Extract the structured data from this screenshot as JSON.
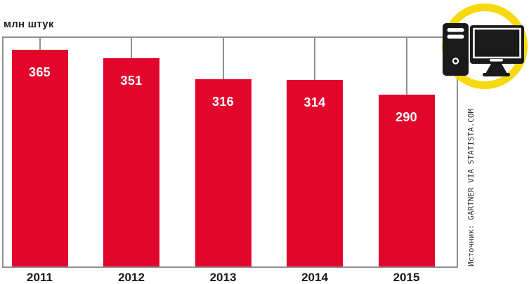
{
  "chart_data": {
    "type": "bar",
    "unit_label": "млн штук",
    "categories": [
      "2011",
      "2012",
      "2013",
      "2014",
      "2015"
    ],
    "values": [
      365,
      351,
      316,
      314,
      290
    ],
    "bar_color": "#e2062c",
    "frame_color": "#8f8f8f",
    "value_label_color": "#ffffff",
    "axis_label_color": "#1a1a1a",
    "grid": "off",
    "legend": "none",
    "source": "Источник: GARTNER VIA STATISTA.COM"
  },
  "badge": {
    "icon": "desktop-computer-icon",
    "ring_color": "#f6d90f",
    "icon_color": "#1a1a1a"
  }
}
